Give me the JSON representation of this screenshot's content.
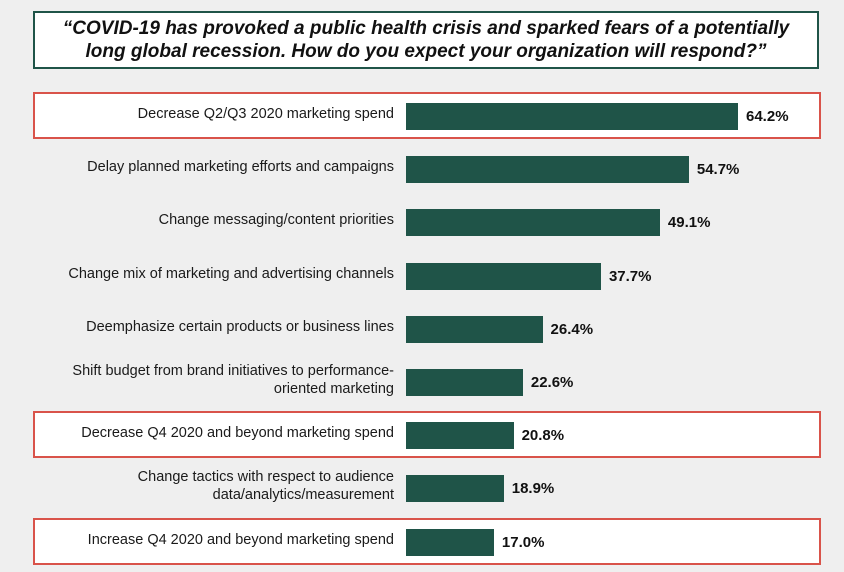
{
  "title": "“COVID-19 has provoked a public health crisis and sparked fears of a potentially long global recession. How do you expect your organization will respond?”",
  "colors": {
    "bar": "#1f5448",
    "highlight_border": "#d9534a",
    "background": "#efefef"
  },
  "chart_data": {
    "type": "bar",
    "orientation": "horizontal",
    "title": "“COVID-19 has provoked a public health crisis and sparked fears of a potentially long global recession. How do you expect your organization will respond?”",
    "categories": [
      "Decrease Q2/Q3 2020 marketing spend",
      "Delay planned marketing efforts and campaigns",
      "Change messaging/content priorities",
      "Change mix of marketing and advertising channels",
      "Deemphasize certain products or business lines",
      "Shift budget from brand initiatives to performance-oriented marketing",
      "Decrease Q4 2020 and beyond marketing spend",
      "Change tactics with respect to audience data/analytics/measurement",
      "Increase Q4 2020 and beyond marketing spend"
    ],
    "category_lines": [
      [
        "Decrease Q2/Q3 2020 marketing spend"
      ],
      [
        "Delay planned marketing efforts and campaigns"
      ],
      [
        "Change messaging/content priorities"
      ],
      [
        "Change mix of marketing and advertising channels"
      ],
      [
        "Deemphasize certain products or business lines"
      ],
      [
        "Shift budget from brand initiatives to performance-",
        "oriented marketing"
      ],
      [
        "Decrease Q4 2020 and beyond marketing spend"
      ],
      [
        "Change tactics with respect to audience",
        "data/analytics/measurement"
      ],
      [
        "Increase Q4 2020 and beyond marketing spend"
      ]
    ],
    "values": [
      64.2,
      54.7,
      49.1,
      37.7,
      26.4,
      22.6,
      20.8,
      18.9,
      17.0
    ],
    "value_labels": [
      "64.2%",
      "54.7%",
      "49.1%",
      "37.7%",
      "26.4%",
      "22.6%",
      "20.8%",
      "18.9%",
      "17.0%"
    ],
    "highlighted": [
      true,
      false,
      false,
      false,
      false,
      false,
      true,
      false,
      true
    ],
    "xlabel": "",
    "ylabel": "",
    "xlim": [
      0,
      100
    ],
    "grid": false,
    "legend": "none"
  }
}
